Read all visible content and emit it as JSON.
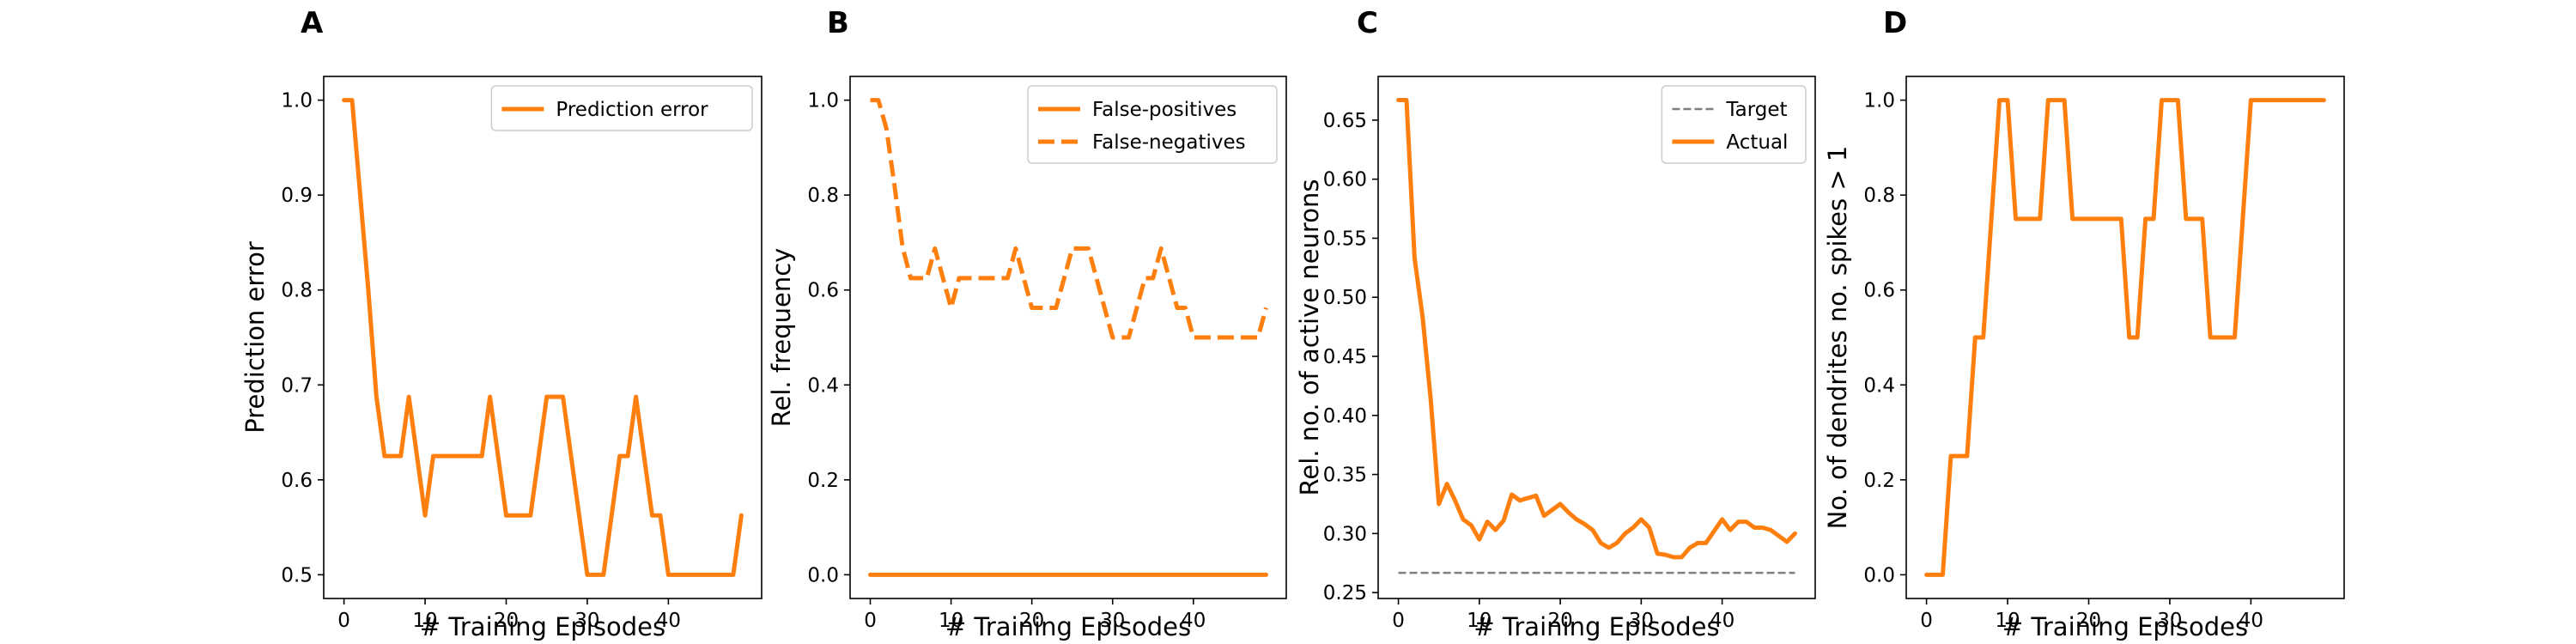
{
  "colors": {
    "actual": "#ff7f0e",
    "target": "#7f7f7f",
    "axis": "#000000"
  },
  "chart_data": [
    {
      "type": "line",
      "panel_label": "A",
      "xlabel": "# Training Episodes",
      "ylabel": "Prediction error",
      "xlim": [
        -2.5,
        51.5
      ],
      "ylim": [
        0.475,
        1.025
      ],
      "xticks": [
        0,
        10,
        20,
        30,
        40
      ],
      "yticks": [
        0.5,
        0.6,
        0.7,
        0.8,
        0.9,
        1.0
      ],
      "ytick_labels": [
        "0.5",
        "0.6",
        "0.7",
        "0.8",
        "0.9",
        "1.0"
      ],
      "grid": false,
      "legend_position": "top-right",
      "x": [
        0,
        1,
        2,
        3,
        4,
        5,
        6,
        7,
        8,
        9,
        10,
        11,
        12,
        13,
        14,
        15,
        16,
        17,
        18,
        19,
        20,
        21,
        22,
        23,
        24,
        25,
        26,
        27,
        28,
        29,
        30,
        31,
        32,
        33,
        34,
        35,
        36,
        37,
        38,
        39,
        40,
        41,
        42,
        43,
        44,
        45,
        46,
        47,
        48,
        49
      ],
      "series": [
        {
          "name": "Prediction error",
          "style": "solid",
          "color": "#ff7f0e",
          "values": [
            1.0,
            1.0,
            0.9,
            0.8,
            0.6875,
            0.625,
            0.625,
            0.625,
            0.6875,
            0.625,
            0.5625,
            0.625,
            0.625,
            0.625,
            0.625,
            0.625,
            0.625,
            0.625,
            0.6875,
            0.625,
            0.5625,
            0.5625,
            0.5625,
            0.5625,
            0.625,
            0.6875,
            0.6875,
            0.6875,
            0.625,
            0.5625,
            0.5,
            0.5,
            0.5,
            0.5625,
            0.625,
            0.625,
            0.6875,
            0.625,
            0.5625,
            0.5625,
            0.5,
            0.5,
            0.5,
            0.5,
            0.5,
            0.5,
            0.5,
            0.5,
            0.5,
            0.5625
          ]
        }
      ]
    },
    {
      "type": "line",
      "panel_label": "B",
      "xlabel": "# Training Episodes",
      "ylabel": "Rel. frequency",
      "xlim": [
        -2.5,
        51.5
      ],
      "ylim": [
        -0.05,
        1.05
      ],
      "xticks": [
        0,
        10,
        20,
        30,
        40
      ],
      "yticks": [
        0.0,
        0.2,
        0.4,
        0.6,
        0.8,
        1.0
      ],
      "ytick_labels": [
        "0.0",
        "0.2",
        "0.4",
        "0.6",
        "0.8",
        "1.0"
      ],
      "grid": false,
      "legend_position": "top-right",
      "x": [
        0,
        1,
        2,
        3,
        4,
        5,
        6,
        7,
        8,
        9,
        10,
        11,
        12,
        13,
        14,
        15,
        16,
        17,
        18,
        19,
        20,
        21,
        22,
        23,
        24,
        25,
        26,
        27,
        28,
        29,
        30,
        31,
        32,
        33,
        34,
        35,
        36,
        37,
        38,
        39,
        40,
        41,
        42,
        43,
        44,
        45,
        46,
        47,
        48,
        49
      ],
      "series": [
        {
          "name": "False-positives",
          "style": "solid",
          "color": "#ff7f0e",
          "values": [
            0,
            0,
            0,
            0,
            0,
            0,
            0,
            0,
            0,
            0,
            0,
            0,
            0,
            0,
            0,
            0,
            0,
            0,
            0,
            0,
            0,
            0,
            0,
            0,
            0,
            0,
            0,
            0,
            0,
            0,
            0,
            0,
            0,
            0,
            0,
            0,
            0,
            0,
            0,
            0,
            0,
            0,
            0,
            0,
            0,
            0,
            0,
            0,
            0,
            0
          ]
        },
        {
          "name": "False-negatives",
          "style": "dashed",
          "color": "#ff7f0e",
          "values": [
            1.0,
            1.0,
            0.94,
            0.82,
            0.69,
            0.625,
            0.625,
            0.625,
            0.6875,
            0.625,
            0.5625,
            0.625,
            0.625,
            0.625,
            0.625,
            0.625,
            0.625,
            0.625,
            0.6875,
            0.625,
            0.5625,
            0.5625,
            0.5625,
            0.5625,
            0.625,
            0.6875,
            0.6875,
            0.6875,
            0.625,
            0.5625,
            0.5,
            0.5,
            0.5,
            0.5625,
            0.625,
            0.625,
            0.6875,
            0.625,
            0.5625,
            0.5625,
            0.5,
            0.5,
            0.5,
            0.5,
            0.5,
            0.5,
            0.5,
            0.5,
            0.5,
            0.5625
          ]
        }
      ]
    },
    {
      "type": "line",
      "panel_label": "C",
      "xlabel": "# Training Episodes",
      "ylabel": "Rel. no. of active neurons",
      "xlim": [
        -2.5,
        51.5
      ],
      "ylim": [
        0.245,
        0.687
      ],
      "xticks": [
        0,
        10,
        20,
        30,
        40
      ],
      "yticks": [
        0.25,
        0.3,
        0.35,
        0.4,
        0.45,
        0.5,
        0.55,
        0.6,
        0.65
      ],
      "ytick_labels": [
        "0.25",
        "0.30",
        "0.35",
        "0.40",
        "0.45",
        "0.50",
        "0.55",
        "0.60",
        "0.65"
      ],
      "grid": false,
      "legend_position": "top-right",
      "x": [
        0,
        1,
        2,
        3,
        4,
        5,
        6,
        7,
        8,
        9,
        10,
        11,
        12,
        13,
        14,
        15,
        16,
        17,
        18,
        19,
        20,
        21,
        22,
        23,
        24,
        25,
        26,
        27,
        28,
        29,
        30,
        31,
        32,
        33,
        34,
        35,
        36,
        37,
        38,
        39,
        40,
        41,
        42,
        43,
        44,
        45,
        46,
        47,
        48,
        49
      ],
      "series": [
        {
          "name": "Target",
          "style": "dashed",
          "color": "#7f7f7f",
          "values": [
            0.2667,
            0.2667,
            0.2667,
            0.2667,
            0.2667,
            0.2667,
            0.2667,
            0.2667,
            0.2667,
            0.2667,
            0.2667,
            0.2667,
            0.2667,
            0.2667,
            0.2667,
            0.2667,
            0.2667,
            0.2667,
            0.2667,
            0.2667,
            0.2667,
            0.2667,
            0.2667,
            0.2667,
            0.2667,
            0.2667,
            0.2667,
            0.2667,
            0.2667,
            0.2667,
            0.2667,
            0.2667,
            0.2667,
            0.2667,
            0.2667,
            0.2667,
            0.2667,
            0.2667,
            0.2667,
            0.2667,
            0.2667,
            0.2667,
            0.2667,
            0.2667,
            0.2667,
            0.2667,
            0.2667,
            0.2667,
            0.2667,
            0.2667
          ]
        },
        {
          "name": "Actual",
          "style": "solid",
          "color": "#ff7f0e",
          "values": [
            0.667,
            0.667,
            0.533,
            0.483,
            0.413,
            0.325,
            0.342,
            0.328,
            0.312,
            0.307,
            0.295,
            0.31,
            0.303,
            0.311,
            0.333,
            0.328,
            0.33,
            0.332,
            0.315,
            0.32,
            0.325,
            0.318,
            0.312,
            0.308,
            0.303,
            0.292,
            0.288,
            0.292,
            0.3,
            0.305,
            0.312,
            0.305,
            0.283,
            0.282,
            0.28,
            0.28,
            0.288,
            0.292,
            0.292,
            0.302,
            0.312,
            0.303,
            0.31,
            0.31,
            0.305,
            0.305,
            0.303,
            0.298,
            0.293,
            0.3
          ]
        }
      ]
    },
    {
      "type": "line",
      "panel_label": "D",
      "xlabel": "# Training Episodes",
      "ylabel": "No. of dendrites no. spikes > 1",
      "xlim": [
        -2.5,
        51.5
      ],
      "ylim": [
        -0.05,
        1.05
      ],
      "xticks": [
        0,
        10,
        20,
        30,
        40
      ],
      "yticks": [
        0.0,
        0.2,
        0.4,
        0.6,
        0.8,
        1.0
      ],
      "ytick_labels": [
        "0.0",
        "0.2",
        "0.4",
        "0.6",
        "0.8",
        "1.0"
      ],
      "grid": false,
      "legend_position": "none",
      "x": [
        0,
        1,
        2,
        3,
        4,
        5,
        6,
        7,
        8,
        9,
        10,
        11,
        12,
        13,
        14,
        15,
        16,
        17,
        18,
        19,
        20,
        21,
        22,
        23,
        24,
        25,
        26,
        27,
        28,
        29,
        30,
        31,
        32,
        33,
        34,
        35,
        36,
        37,
        38,
        39,
        40,
        41,
        42,
        43,
        44,
        45,
        46,
        47,
        48,
        49
      ],
      "series": [
        {
          "style": "solid",
          "color": "#ff7f0e",
          "values": [
            0,
            0,
            0,
            0.25,
            0.25,
            0.25,
            0.5,
            0.5,
            0.75,
            1.0,
            1.0,
            0.75,
            0.75,
            0.75,
            0.75,
            1.0,
            1.0,
            1.0,
            0.75,
            0.75,
            0.75,
            0.75,
            0.75,
            0.75,
            0.75,
            0.5,
            0.5,
            0.75,
            0.75,
            1.0,
            1.0,
            1.0,
            0.75,
            0.75,
            0.75,
            0.5,
            0.5,
            0.5,
            0.5,
            0.75,
            1.0,
            1.0,
            1.0,
            1.0,
            1.0,
            1.0,
            1.0,
            1.0,
            1.0,
            1.0
          ]
        }
      ]
    }
  ]
}
